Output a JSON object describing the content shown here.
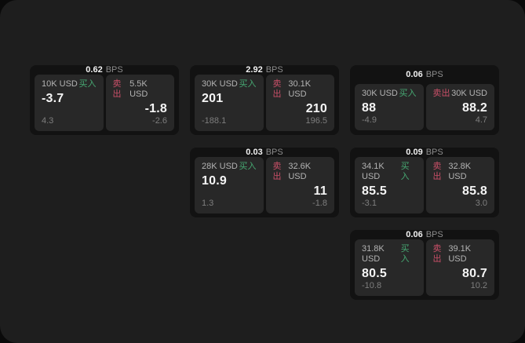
{
  "labels": {
    "buy": "买入",
    "sell": "卖出",
    "bps_unit": "BPS"
  },
  "colors": {
    "buy": "#46a872",
    "sell": "#c94f68",
    "panel_bg": "#1e1e1e",
    "card_bg": "#121212",
    "quote_bg": "#282828"
  },
  "cards": [
    {
      "bps": "0.62",
      "buy": {
        "amount": "10K USD",
        "value": "-3.7",
        "delta": "4.3"
      },
      "sell": {
        "amount": "5.5K USD",
        "value": "-1.8",
        "delta": "-2.6"
      }
    },
    {
      "bps": "2.92",
      "buy": {
        "amount": "30K USD",
        "value": "201",
        "delta": "-188.1"
      },
      "sell": {
        "amount": "30.1K USD",
        "value": "210",
        "delta": "196.5"
      }
    },
    {
      "bps": "0.06",
      "buy": {
        "amount": "30K USD",
        "value": "88",
        "delta": "-4.9"
      },
      "sell": {
        "amount": "30K USD",
        "value": "88.2",
        "delta": "4.7"
      }
    },
    {
      "bps": "0.03",
      "buy": {
        "amount": "28K USD",
        "value": "10.9",
        "delta": "1.3"
      },
      "sell": {
        "amount": "32.6K USD",
        "value": "11",
        "delta": "-1.8"
      }
    },
    {
      "bps": "0.09",
      "buy": {
        "amount": "34.1K USD",
        "value": "85.5",
        "delta": "-3.1"
      },
      "sell": {
        "amount": "32.8K USD",
        "value": "85.8",
        "delta": "3.0"
      }
    },
    {
      "bps": "0.06",
      "buy": {
        "amount": "31.8K USD",
        "value": "80.5",
        "delta": "-10.8"
      },
      "sell": {
        "amount": "39.1K USD",
        "value": "80.7",
        "delta": "10.2"
      }
    }
  ]
}
